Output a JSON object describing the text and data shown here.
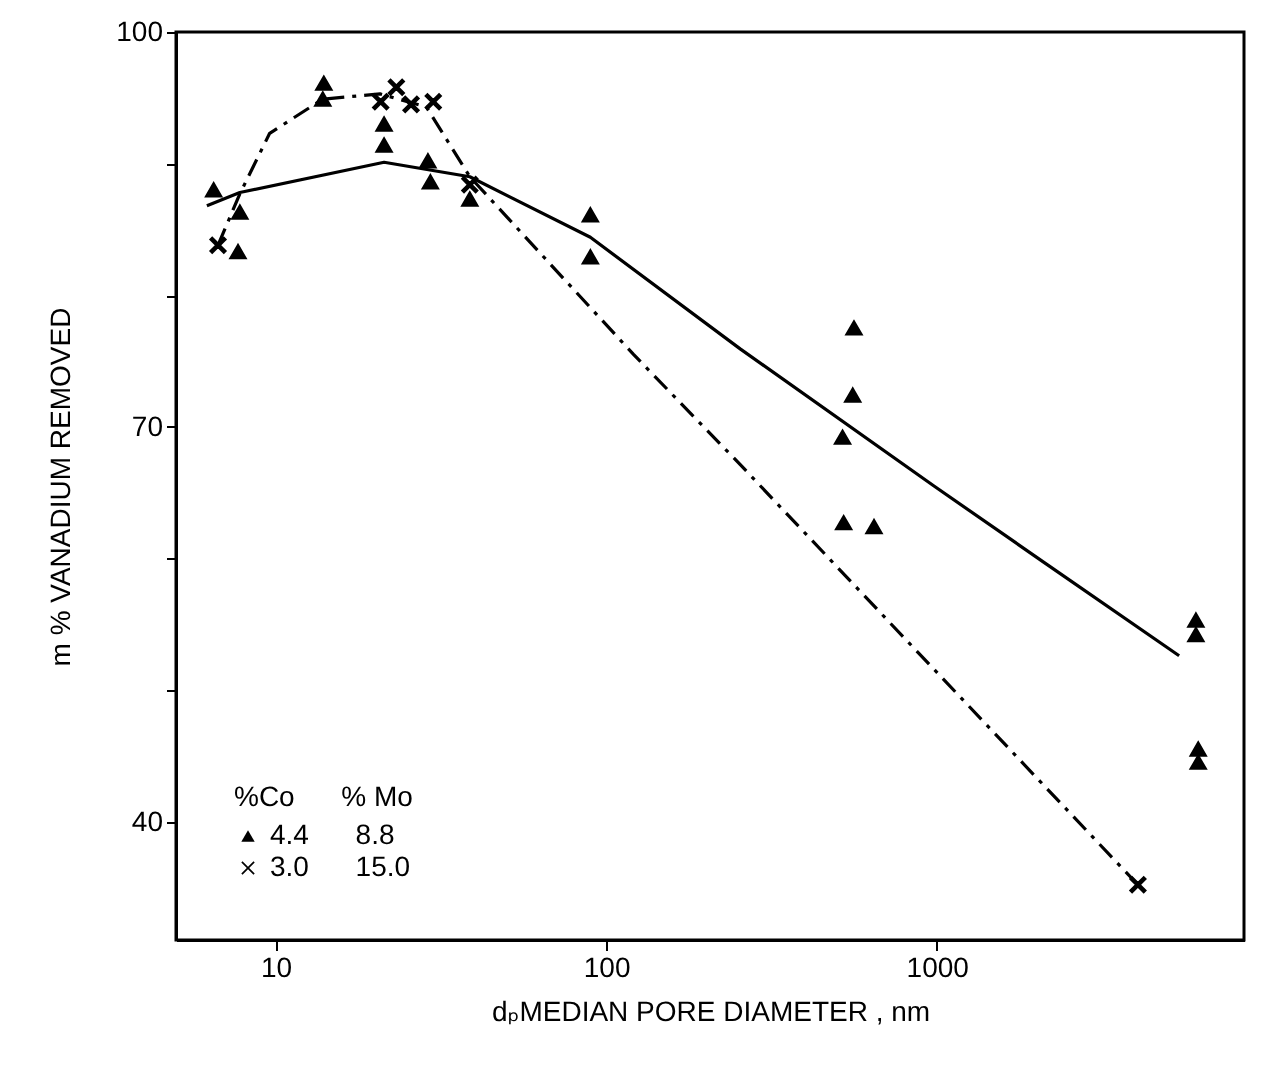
{
  "chart_data": {
    "type": "scatter",
    "xlabel": "dₚMEDIAN PORE DIAMETER , nm",
    "ylabel": "m % VANADIUM  REMOVED",
    "legend_title": "%Co      % Mo",
    "legend": "bottom left",
    "log": "x",
    "grid": false,
    "xlim": [
      5,
      8500
    ],
    "ylim": [
      31,
      100
    ],
    "xticks": [
      10,
      100,
      1000
    ],
    "yticks": [
      40,
      {
        "value": 50,
        "label": null
      },
      {
        "value": 60,
        "label": null
      },
      70,
      {
        "value": 80,
        "label": null
      },
      {
        "value": 90,
        "label": null
      },
      100
    ],
    "series": [
      {
        "type": "line",
        "line_style": "solid",
        "color": "#000000",
        "marker": "none",
        "x": [
          6.2,
          7.8,
          21.3,
          38.7,
          89.6,
          255,
          981,
          2110,
          5410
        ],
        "values": [
          86.8,
          87.8,
          90.1,
          89.0,
          84.4,
          75.9,
          65.5,
          59.7,
          52.6
        ]
      },
      {
        "type": "line",
        "line_style": "dashed",
        "color": "#000000",
        "marker": "none",
        "x": [
          6.7,
          7.8,
          9.6,
          13.9,
          20.7,
          28.6,
          38.7,
          121,
          255,
          4060
        ],
        "values": [
          83.8,
          87.7,
          92.3,
          94.9,
          95.3,
          94.3,
          89.0,
          75.5,
          67.1,
          35.2
        ]
      },
      {
        "type": "scatter",
        "name": "4.4      8.8",
        "marker": "triangle",
        "color": "#000000",
        "x": [
          6.5,
          7.8,
          7.7,
          14.0,
          13.9,
          21.3,
          21.3,
          28.9,
          29.4,
          38.7,
          89.6,
          89.6,
          562,
          557,
          519,
          523,
          646,
          6080,
          6080,
          6180,
          6180
        ],
        "values": [
          88.0,
          86.3,
          83.3,
          96.1,
          94.9,
          93.0,
          91.4,
          90.2,
          88.6,
          87.3,
          86.1,
          82.9,
          77.5,
          72.4,
          69.2,
          62.7,
          62.4,
          55.3,
          54.2,
          45.5,
          44.5
        ]
      },
      {
        "type": "scatter",
        "name": "3.0      15.0",
        "marker": "cross",
        "color": "#000000",
        "x": [
          6.7,
          20.8,
          23.2,
          25.7,
          30.0,
          38.7,
          4060
        ],
        "values": [
          83.8,
          94.7,
          95.8,
          94.5,
          94.7,
          88.4,
          35.2
        ]
      }
    ]
  }
}
